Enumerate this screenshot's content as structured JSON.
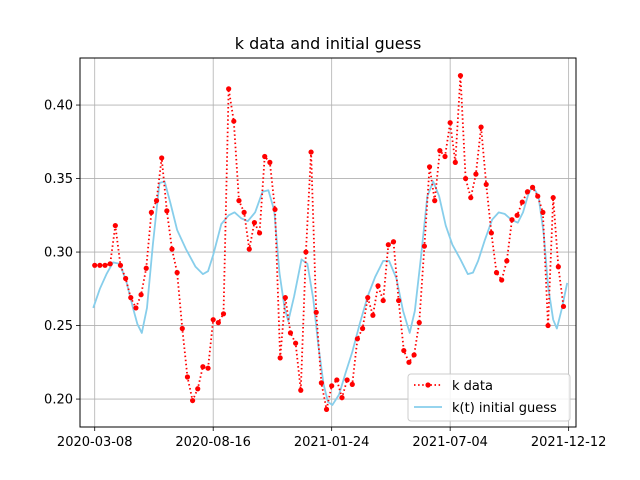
{
  "chart_data": {
    "type": "line",
    "title": "k data and initial guess",
    "xlabel": "",
    "ylabel": "",
    "x_type": "date",
    "xlim": [
      "2020-02-17",
      "2021-12-22"
    ],
    "ylim": [
      0.181,
      0.432
    ],
    "x_ticks": [
      "2020-03-08",
      "2020-08-16",
      "2021-01-24",
      "2021-07-04",
      "2021-12-12"
    ],
    "y_ticks": [
      0.2,
      0.25,
      0.3,
      0.35,
      0.4
    ],
    "y_tick_labels": [
      "0.20",
      "0.25",
      "0.30",
      "0.35",
      "0.40"
    ],
    "grid": true,
    "legend_position": "lower-right",
    "series": [
      {
        "name": "k data",
        "color": "#ff0000",
        "style": "dotted-with-points",
        "points": [
          [
            "2020-03-08",
            0.291
          ],
          [
            "2020-03-15",
            0.291
          ],
          [
            "2020-03-22",
            0.291
          ],
          [
            "2020-03-29",
            0.292
          ],
          [
            "2020-04-05",
            0.318
          ],
          [
            "2020-04-12",
            0.291
          ],
          [
            "2020-04-19",
            0.282
          ],
          [
            "2020-04-26",
            0.269
          ],
          [
            "2020-05-03",
            0.262
          ],
          [
            "2020-05-10",
            0.271
          ],
          [
            "2020-05-17",
            0.289
          ],
          [
            "2020-05-24",
            0.327
          ],
          [
            "2020-05-31",
            0.335
          ],
          [
            "2020-06-07",
            0.364
          ],
          [
            "2020-06-14",
            0.328
          ],
          [
            "2020-06-21",
            0.302
          ],
          [
            "2020-06-28",
            0.286
          ],
          [
            "2020-07-05",
            0.248
          ],
          [
            "2020-07-12",
            0.215
          ],
          [
            "2020-07-19",
            0.199
          ],
          [
            "2020-07-26",
            0.207
          ],
          [
            "2020-08-02",
            0.222
          ],
          [
            "2020-08-09",
            0.221
          ],
          [
            "2020-08-16",
            0.254
          ],
          [
            "2020-08-23",
            0.252
          ],
          [
            "2020-08-30",
            0.258
          ],
          [
            "2020-09-06",
            0.411
          ],
          [
            "2020-09-13",
            0.389
          ],
          [
            "2020-09-20",
            0.335
          ],
          [
            "2020-09-27",
            0.327
          ],
          [
            "2020-10-04",
            0.302
          ],
          [
            "2020-10-11",
            0.32
          ],
          [
            "2020-10-18",
            0.313
          ],
          [
            "2020-10-25",
            0.365
          ],
          [
            "2020-11-01",
            0.361
          ],
          [
            "2020-11-08",
            0.329
          ],
          [
            "2020-11-15",
            0.228
          ],
          [
            "2020-11-22",
            0.269
          ],
          [
            "2020-11-29",
            0.245
          ],
          [
            "2020-12-06",
            0.238
          ],
          [
            "2020-12-13",
            0.206
          ],
          [
            "2020-12-20",
            0.3
          ],
          [
            "2020-12-27",
            0.368
          ],
          [
            "2021-01-03",
            0.259
          ],
          [
            "2021-01-10",
            0.211
          ],
          [
            "2021-01-17",
            0.193
          ],
          [
            "2021-01-24",
            0.209
          ],
          [
            "2021-01-31",
            0.213
          ],
          [
            "2021-02-07",
            0.201
          ],
          [
            "2021-02-14",
            0.213
          ],
          [
            "2021-02-21",
            0.21
          ],
          [
            "2021-02-28",
            0.241
          ],
          [
            "2021-03-07",
            0.248
          ],
          [
            "2021-03-14",
            0.269
          ],
          [
            "2021-03-21",
            0.257
          ],
          [
            "2021-03-28",
            0.277
          ],
          [
            "2021-04-04",
            0.267
          ],
          [
            "2021-04-11",
            0.305
          ],
          [
            "2021-04-18",
            0.307
          ],
          [
            "2021-04-25",
            0.267
          ],
          [
            "2021-05-02",
            0.233
          ],
          [
            "2021-05-09",
            0.225
          ],
          [
            "2021-05-16",
            0.23
          ],
          [
            "2021-05-23",
            0.252
          ],
          [
            "2021-05-30",
            0.304
          ],
          [
            "2021-06-06",
            0.358
          ],
          [
            "2021-06-13",
            0.335
          ],
          [
            "2021-06-20",
            0.369
          ],
          [
            "2021-06-27",
            0.365
          ],
          [
            "2021-07-04",
            0.388
          ],
          [
            "2021-07-11",
            0.361
          ],
          [
            "2021-07-18",
            0.42
          ],
          [
            "2021-07-25",
            0.35
          ],
          [
            "2021-08-01",
            0.337
          ],
          [
            "2021-08-08",
            0.353
          ],
          [
            "2021-08-15",
            0.385
          ],
          [
            "2021-08-22",
            0.346
          ],
          [
            "2021-08-29",
            0.313
          ],
          [
            "2021-09-05",
            0.286
          ],
          [
            "2021-09-12",
            0.281
          ],
          [
            "2021-09-19",
            0.294
          ],
          [
            "2021-09-26",
            0.322
          ],
          [
            "2021-10-03",
            0.325
          ],
          [
            "2021-10-10",
            0.334
          ],
          [
            "2021-10-17",
            0.341
          ],
          [
            "2021-10-24",
            0.344
          ],
          [
            "2021-10-31",
            0.338
          ],
          [
            "2021-11-07",
            0.327
          ],
          [
            "2021-11-14",
            0.25
          ],
          [
            "2021-11-21",
            0.337
          ],
          [
            "2021-11-28",
            0.29
          ],
          [
            "2021-12-05",
            0.263
          ]
        ]
      },
      {
        "name": "k(t) initial guess",
        "color": "#87ceeb",
        "style": "solid",
        "points": [
          [
            "2020-03-06",
            0.262
          ],
          [
            "2020-03-15",
            0.275
          ],
          [
            "2020-03-24",
            0.285
          ],
          [
            "2020-04-02",
            0.293
          ],
          [
            "2020-04-11",
            0.292
          ],
          [
            "2020-04-20",
            0.28
          ],
          [
            "2020-04-29",
            0.262
          ],
          [
            "2020-05-05",
            0.251
          ],
          [
            "2020-05-11",
            0.245
          ],
          [
            "2020-05-18",
            0.262
          ],
          [
            "2020-05-26",
            0.305
          ],
          [
            "2020-06-04",
            0.347
          ],
          [
            "2020-06-11",
            0.348
          ],
          [
            "2020-06-19",
            0.333
          ],
          [
            "2020-06-28",
            0.315
          ],
          [
            "2020-07-10",
            0.302
          ],
          [
            "2020-07-23",
            0.29
          ],
          [
            "2020-08-02",
            0.285
          ],
          [
            "2020-08-09",
            0.287
          ],
          [
            "2020-08-16",
            0.298
          ],
          [
            "2020-08-27",
            0.319
          ],
          [
            "2020-09-06",
            0.325
          ],
          [
            "2020-09-14",
            0.327
          ],
          [
            "2020-09-23",
            0.323
          ],
          [
            "2020-10-02",
            0.321
          ],
          [
            "2020-10-12",
            0.327
          ],
          [
            "2020-10-22",
            0.341
          ],
          [
            "2020-10-30",
            0.342
          ],
          [
            "2020-11-07",
            0.328
          ],
          [
            "2020-11-14",
            0.286
          ],
          [
            "2020-11-21",
            0.262
          ],
          [
            "2020-11-26",
            0.253
          ],
          [
            "2020-12-04",
            0.27
          ],
          [
            "2020-12-14",
            0.295
          ],
          [
            "2020-12-22",
            0.292
          ],
          [
            "2020-12-30",
            0.268
          ],
          [
            "2021-01-06",
            0.236
          ],
          [
            "2021-01-13",
            0.21
          ],
          [
            "2021-01-19",
            0.198
          ],
          [
            "2021-01-25",
            0.196
          ],
          [
            "2021-02-03",
            0.203
          ],
          [
            "2021-02-12",
            0.218
          ],
          [
            "2021-02-21",
            0.232
          ],
          [
            "2021-03-03",
            0.251
          ],
          [
            "2021-03-14",
            0.27
          ],
          [
            "2021-03-24",
            0.283
          ],
          [
            "2021-04-04",
            0.294
          ],
          [
            "2021-04-12",
            0.294
          ],
          [
            "2021-04-22",
            0.282
          ],
          [
            "2021-05-01",
            0.26
          ],
          [
            "2021-05-10",
            0.245
          ],
          [
            "2021-05-17",
            0.26
          ],
          [
            "2021-05-25",
            0.295
          ],
          [
            "2021-06-03",
            0.338
          ],
          [
            "2021-06-11",
            0.348
          ],
          [
            "2021-06-19",
            0.338
          ],
          [
            "2021-06-28",
            0.318
          ],
          [
            "2021-07-07",
            0.305
          ],
          [
            "2021-07-18",
            0.295
          ],
          [
            "2021-07-28",
            0.285
          ],
          [
            "2021-08-04",
            0.286
          ],
          [
            "2021-08-11",
            0.294
          ],
          [
            "2021-08-20",
            0.308
          ],
          [
            "2021-08-30",
            0.322
          ],
          [
            "2021-09-08",
            0.327
          ],
          [
            "2021-09-16",
            0.326
          ],
          [
            "2021-09-25",
            0.322
          ],
          [
            "2021-10-04",
            0.32
          ],
          [
            "2021-10-11",
            0.327
          ],
          [
            "2021-10-18",
            0.339
          ],
          [
            "2021-10-24",
            0.345
          ],
          [
            "2021-11-01",
            0.338
          ],
          [
            "2021-11-08",
            0.313
          ],
          [
            "2021-11-14",
            0.277
          ],
          [
            "2021-11-21",
            0.254
          ],
          [
            "2021-11-26",
            0.248
          ],
          [
            "2021-12-03",
            0.262
          ],
          [
            "2021-12-10",
            0.279
          ]
        ]
      }
    ]
  }
}
